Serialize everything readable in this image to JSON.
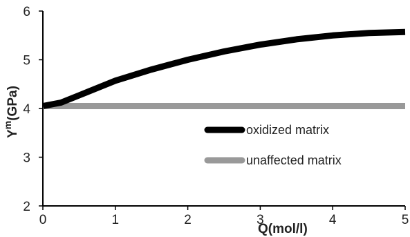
{
  "chart_data": {
    "type": "line",
    "xlabel": "Q(mol/l)",
    "ylabel": "Y",
    "ylabel_superscript": "m",
    "ylabel_suffix": "(GPa)",
    "xlim": [
      0,
      5
    ],
    "ylim": [
      2,
      6
    ],
    "xticks": [
      "0",
      "1",
      "2",
      "3",
      "4",
      "5"
    ],
    "yticks": [
      "2",
      "3",
      "4",
      "5",
      "6"
    ],
    "grid": false,
    "legend_position": "center-right",
    "series": [
      {
        "name": "oxidized matrix",
        "color": "#000000",
        "x": [
          0,
          0.25,
          0.5,
          1,
          1.5,
          2,
          2.5,
          3,
          3.5,
          4,
          4.5,
          5
        ],
        "y": [
          4.05,
          4.12,
          4.27,
          4.57,
          4.8,
          5.0,
          5.17,
          5.31,
          5.42,
          5.5,
          5.55,
          5.57
        ]
      },
      {
        "name": "unaffected matrix",
        "color": "#999999",
        "x": [
          0,
          5
        ],
        "y": [
          4.05,
          4.05
        ]
      }
    ]
  }
}
